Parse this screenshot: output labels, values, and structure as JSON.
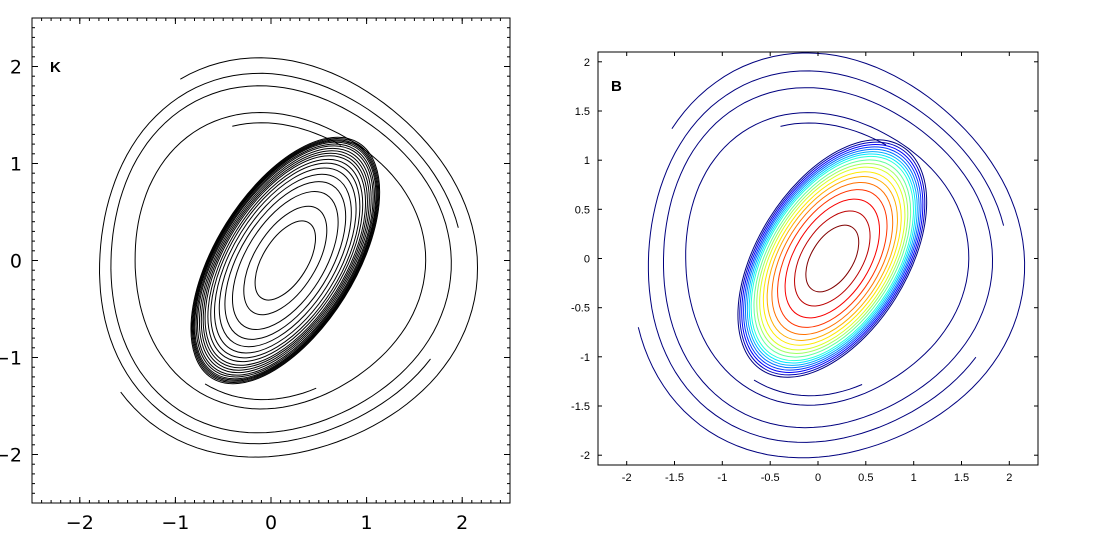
{
  "chart_data": [
    {
      "type": "contour",
      "panel_label": "K",
      "xlim": [
        -2.5,
        2.5
      ],
      "ylim": [
        -2.5,
        2.5
      ],
      "x_ticks": [
        -2,
        -1,
        0,
        1,
        2
      ],
      "y_ticks": [
        -2,
        -1,
        0,
        1,
        2
      ],
      "x_tick_labels": [
        "−2",
        "−1",
        "0",
        "1",
        "2"
      ],
      "y_tick_labels": [
        "−2",
        "−1",
        "0",
        "1",
        "2"
      ],
      "grid": false,
      "line_color": "#000000",
      "vortex": {
        "center": [
          0.15,
          0.0
        ],
        "semi_major": 1.45,
        "semi_minor": 0.72,
        "tilt_deg": 58,
        "level_fractions": [
          0.32,
          0.44,
          0.56,
          0.64,
          0.7,
          0.75,
          0.79,
          0.82,
          0.85,
          0.87,
          0.89,
          0.91,
          0.93,
          0.945,
          0.96,
          0.97,
          0.98,
          0.99,
          1.0
        ]
      },
      "outer_rings": [
        {
          "radius": 2.05,
          "start_deg": 220,
          "end_deg": 120
        },
        {
          "radius": 1.9,
          "start_deg": 10,
          "end_deg": 330
        },
        {
          "radius": 1.78,
          "start_deg": 0,
          "end_deg": 360
        },
        {
          "radius": 1.52,
          "start_deg": 0,
          "end_deg": 360
        },
        {
          "radius": 1.42,
          "start_deg": 60,
          "end_deg": 110
        },
        {
          "radius": 1.42,
          "start_deg": 240,
          "end_deg": 290
        }
      ]
    },
    {
      "type": "contour",
      "panel_label": "B",
      "xlim": [
        -2.3,
        2.3
      ],
      "ylim": [
        -2.1,
        2.1
      ],
      "x_ticks": [
        -2,
        -1.5,
        -1,
        -0.5,
        0,
        0.5,
        1,
        1.5,
        2
      ],
      "y_ticks": [
        -2,
        -1.5,
        -1,
        -0.5,
        0,
        0.5,
        1,
        1.5,
        2
      ],
      "x_tick_labels": [
        "-2",
        "-1.5",
        "-1",
        "-0.5",
        "0",
        "0.5",
        "1",
        "1.5",
        "2"
      ],
      "y_tick_labels": [
        "-2",
        "-1.5",
        "-1",
        "-0.5",
        "0",
        "0.5",
        "1",
        "1.5",
        "2"
      ],
      "grid": false,
      "colormap": "jet",
      "vortex": {
        "center": [
          0.15,
          0.0
        ],
        "semi_major": 1.38,
        "semi_minor": 0.76,
        "tilt_deg": 58,
        "level_fractions": [
          0.28,
          0.4,
          0.5,
          0.58,
          0.64,
          0.69,
          0.73,
          0.77,
          0.8,
          0.83,
          0.86,
          0.88,
          0.9,
          0.92,
          0.94,
          0.96,
          0.98,
          1.0
        ]
      },
      "outer_rings": [
        {
          "radius": 2.05,
          "start_deg": 200,
          "end_deg": 140
        },
        {
          "radius": 1.88,
          "start_deg": 10,
          "end_deg": 330
        },
        {
          "radius": 1.72,
          "start_deg": 0,
          "end_deg": 360
        },
        {
          "radius": 1.48,
          "start_deg": 0,
          "end_deg": 360
        },
        {
          "radius": 1.38,
          "start_deg": 60,
          "end_deg": 110
        },
        {
          "radius": 1.38,
          "start_deg": 240,
          "end_deg": 290
        }
      ]
    }
  ]
}
